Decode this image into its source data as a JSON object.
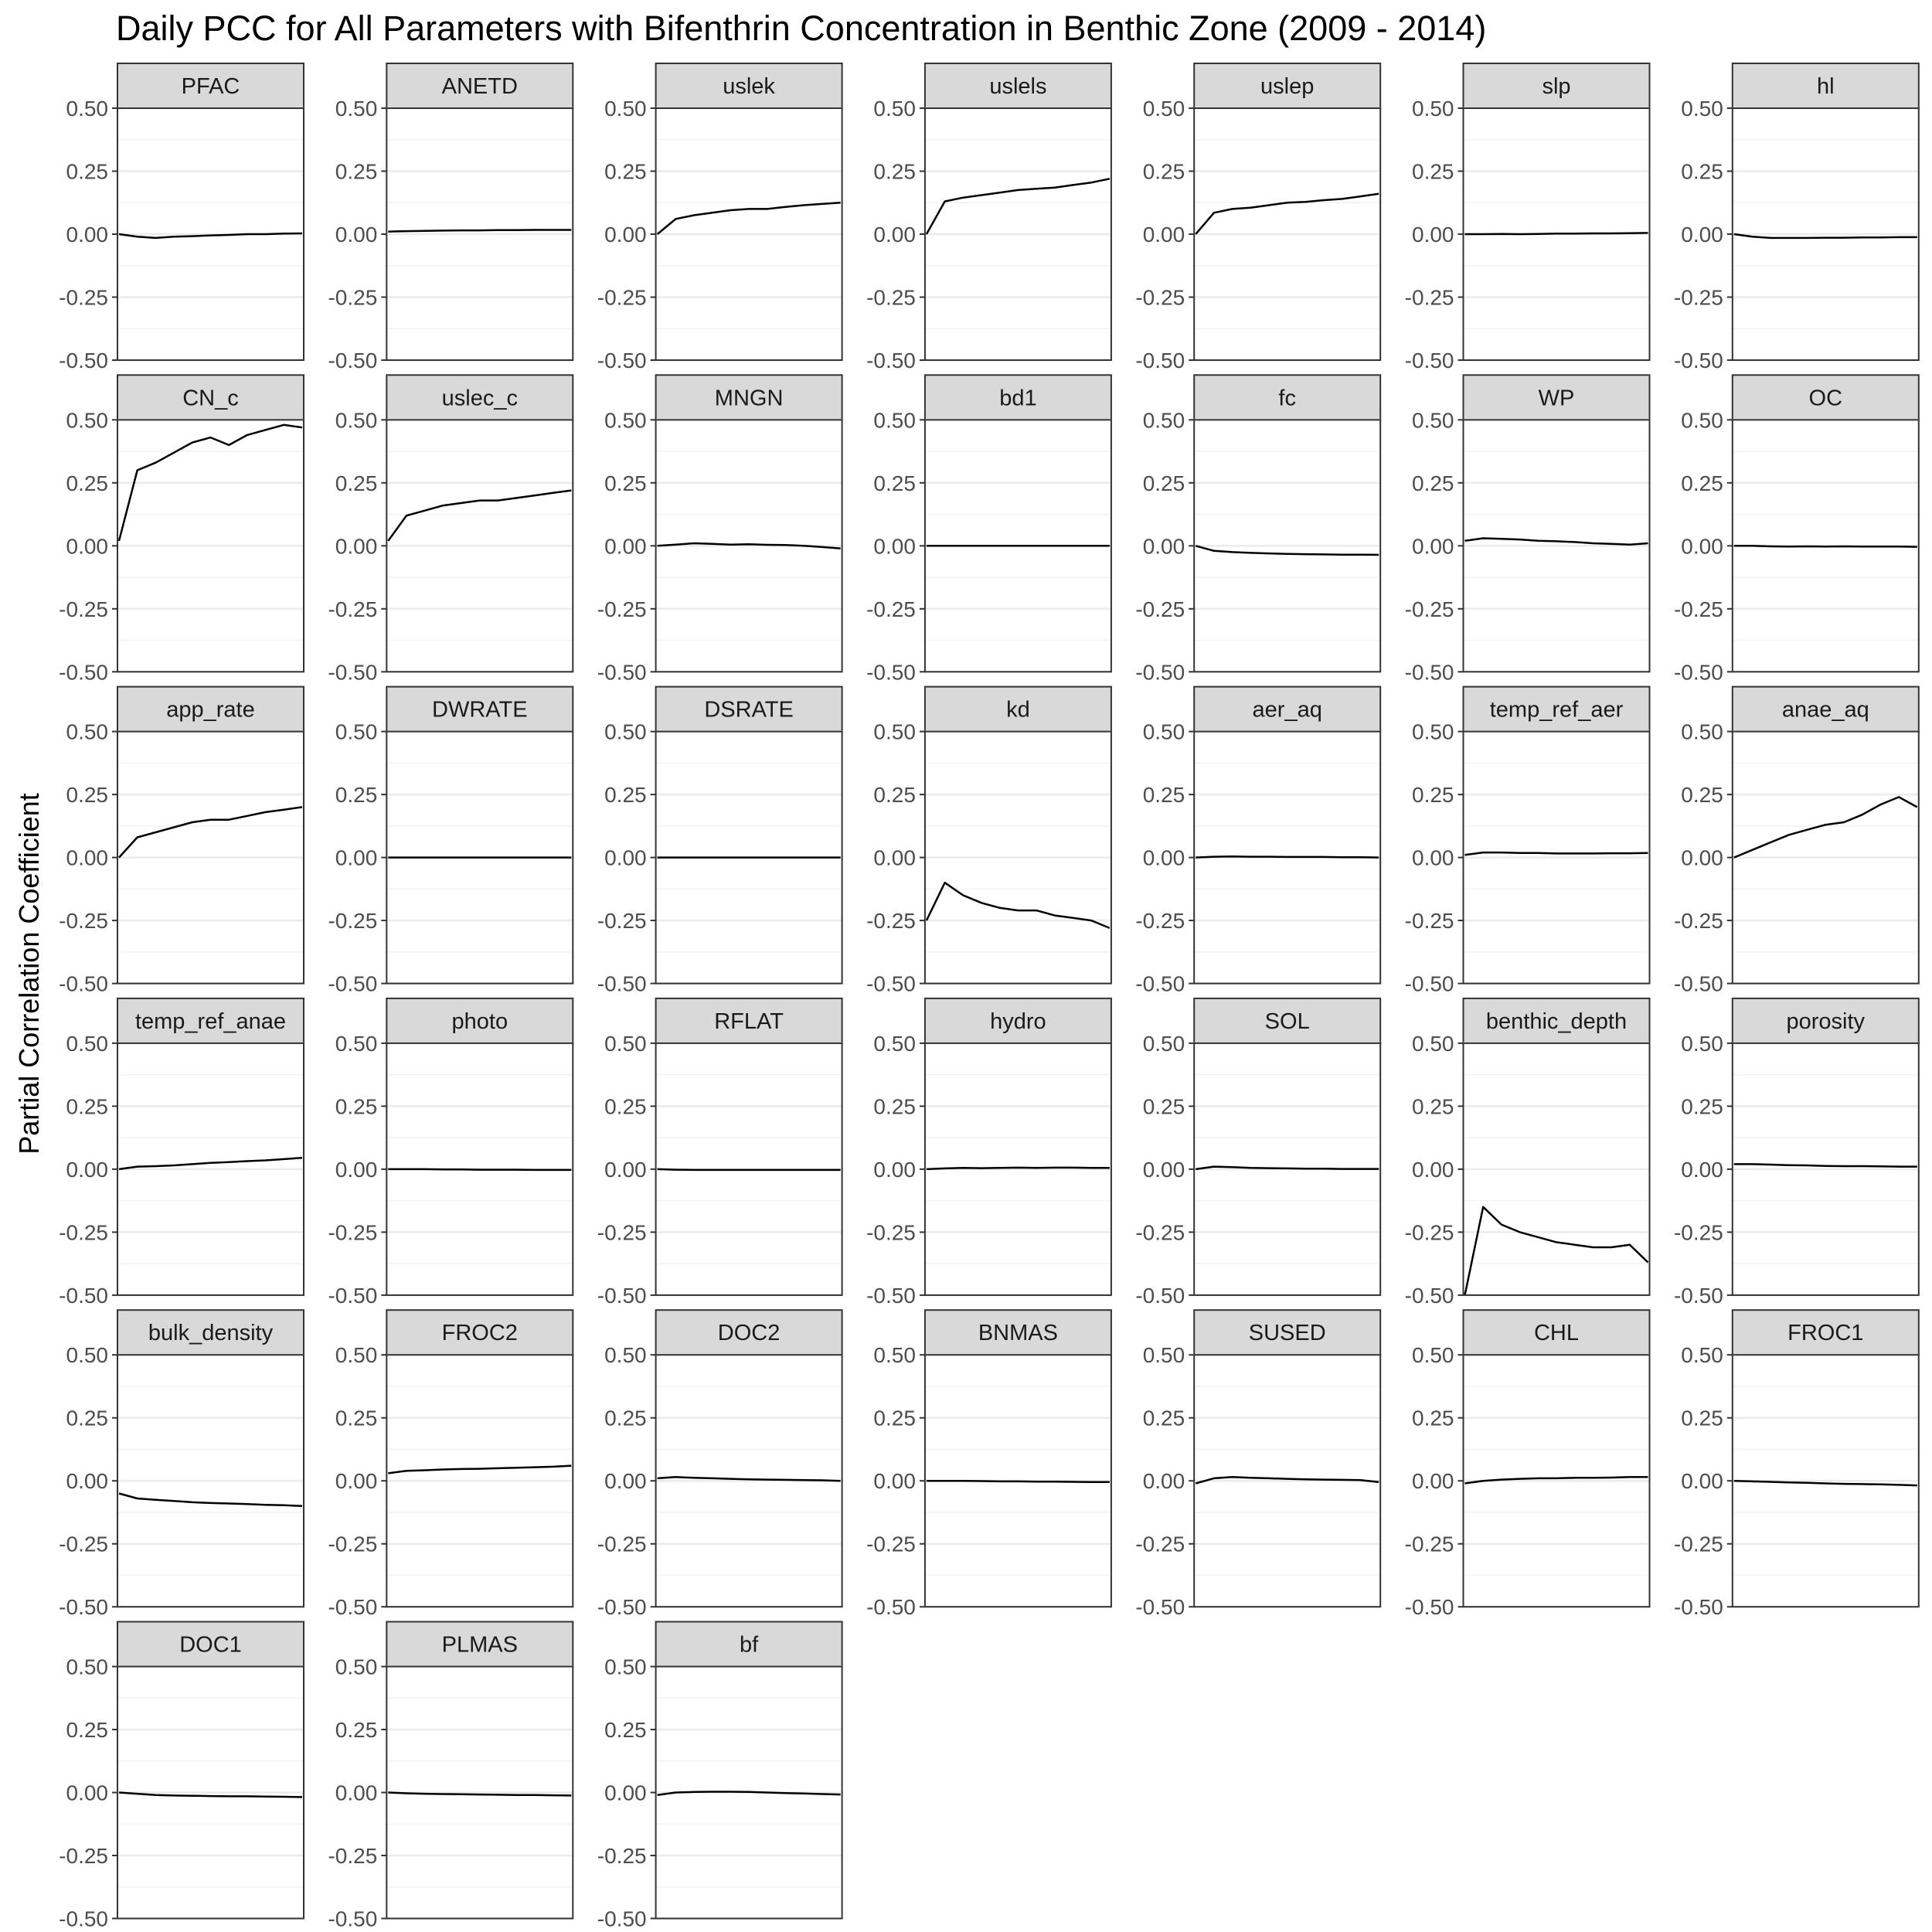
{
  "chart_data": {
    "type": "line",
    "title": "Daily PCC for All Parameters with Bifenthrin Concentration in Benthic Zone (2009 - 2014)",
    "xlabel": "",
    "ylabel": "Partial Correlation Coefficient",
    "ylim": [
      -0.5,
      0.5
    ],
    "y_ticks": [
      "0.50",
      "0.25",
      "0.00",
      "-0.25",
      "-0.50"
    ],
    "x_axis_labels_shown": false,
    "grid": true,
    "layout": "facet grid, 7 columns",
    "series": [
      {
        "name": "PFAC",
        "values": [
          0.0,
          -0.01,
          -0.015,
          -0.01,
          -0.008,
          -0.005,
          -0.003,
          0.0,
          0.0,
          0.002,
          0.003
        ]
      },
      {
        "name": "ANETD",
        "values": [
          0.01,
          0.012,
          0.013,
          0.014,
          0.015,
          0.015,
          0.016,
          0.016,
          0.017,
          0.017,
          0.017
        ]
      },
      {
        "name": "uslek",
        "values": [
          0.0,
          0.06,
          0.075,
          0.085,
          0.095,
          0.1,
          0.1,
          0.108,
          0.115,
          0.12,
          0.125
        ]
      },
      {
        "name": "uslels",
        "values": [
          0.0,
          0.13,
          0.145,
          0.155,
          0.165,
          0.175,
          0.18,
          0.185,
          0.195,
          0.205,
          0.22
        ]
      },
      {
        "name": "uslep",
        "values": [
          0.0,
          0.085,
          0.1,
          0.105,
          0.115,
          0.125,
          0.128,
          0.135,
          0.14,
          0.15,
          0.16
        ]
      },
      {
        "name": "slp",
        "values": [
          0.0,
          0.0,
          0.001,
          0.0,
          0.001,
          0.002,
          0.002,
          0.003,
          0.003,
          0.004,
          0.005
        ]
      },
      {
        "name": "hl",
        "values": [
          0.0,
          -0.01,
          -0.015,
          -0.015,
          -0.015,
          -0.014,
          -0.014,
          -0.013,
          -0.013,
          -0.012,
          -0.012
        ]
      },
      {
        "name": "CN_c",
        "values": [
          0.02,
          0.3,
          0.33,
          0.37,
          0.41,
          0.43,
          0.4,
          0.44,
          0.46,
          0.48,
          0.47
        ]
      },
      {
        "name": "uslec_c",
        "values": [
          0.02,
          0.12,
          0.14,
          0.16,
          0.17,
          0.18,
          0.18,
          0.19,
          0.2,
          0.21,
          0.22
        ]
      },
      {
        "name": "MNGN",
        "values": [
          0.0,
          0.005,
          0.01,
          0.008,
          0.005,
          0.006,
          0.004,
          0.003,
          0.0,
          -0.005,
          -0.01
        ]
      },
      {
        "name": "bd1",
        "values": [
          0.0,
          0.0,
          0.0,
          0.0,
          0.0,
          0.0,
          0.0,
          0.0,
          0.0,
          0.0,
          0.0
        ]
      },
      {
        "name": "fc",
        "values": [
          0.0,
          -0.02,
          -0.025,
          -0.028,
          -0.03,
          -0.032,
          -0.033,
          -0.034,
          -0.035,
          -0.035,
          -0.036
        ]
      },
      {
        "name": "WP",
        "values": [
          0.02,
          0.03,
          0.028,
          0.025,
          0.02,
          0.018,
          0.015,
          0.01,
          0.008,
          0.005,
          0.01
        ]
      },
      {
        "name": "OC",
        "values": [
          0.0,
          0.0,
          -0.002,
          -0.003,
          -0.002,
          -0.003,
          -0.002,
          -0.003,
          -0.003,
          -0.003,
          -0.004
        ]
      },
      {
        "name": "app_rate",
        "values": [
          0.0,
          0.08,
          0.1,
          0.12,
          0.14,
          0.15,
          0.15,
          0.165,
          0.18,
          0.19,
          0.2
        ]
      },
      {
        "name": "DWRATE",
        "values": [
          0.0,
          0.0,
          0.0,
          0.0,
          0.0,
          0.0,
          0.0,
          0.0,
          0.0,
          0.0,
          0.0
        ]
      },
      {
        "name": "DSRATE",
        "values": [
          0.0,
          0.0,
          0.0,
          0.0,
          0.0,
          0.0,
          0.0,
          0.0,
          0.0,
          0.0,
          0.0
        ]
      },
      {
        "name": "kd",
        "values": [
          -0.25,
          -0.1,
          -0.15,
          -0.18,
          -0.2,
          -0.21,
          -0.21,
          -0.23,
          -0.24,
          -0.25,
          -0.28
        ]
      },
      {
        "name": "aer_aq",
        "values": [
          0.0,
          0.003,
          0.004,
          0.003,
          0.003,
          0.002,
          0.002,
          0.002,
          0.001,
          0.001,
          0.0
        ]
      },
      {
        "name": "temp_ref_aer",
        "values": [
          0.01,
          0.02,
          0.02,
          0.018,
          0.018,
          0.016,
          0.016,
          0.016,
          0.017,
          0.017,
          0.018
        ]
      },
      {
        "name": "anae_aq",
        "values": [
          0.0,
          0.03,
          0.06,
          0.09,
          0.11,
          0.13,
          0.14,
          0.17,
          0.21,
          0.24,
          0.2
        ]
      },
      {
        "name": "temp_ref_anae",
        "values": [
          0.0,
          0.01,
          0.012,
          0.015,
          0.02,
          0.025,
          0.028,
          0.032,
          0.035,
          0.04,
          0.045
        ]
      },
      {
        "name": "photo",
        "values": [
          0.0,
          0.0,
          0.0,
          -0.001,
          -0.001,
          -0.002,
          -0.002,
          -0.002,
          -0.003,
          -0.003,
          -0.003
        ]
      },
      {
        "name": "RFLAT",
        "values": [
          0.0,
          -0.002,
          -0.003,
          -0.003,
          -0.003,
          -0.003,
          -0.003,
          -0.003,
          -0.003,
          -0.003,
          -0.003
        ]
      },
      {
        "name": "hydro",
        "values": [
          0.0,
          0.003,
          0.005,
          0.004,
          0.005,
          0.006,
          0.005,
          0.006,
          0.006,
          0.005,
          0.005
        ]
      },
      {
        "name": "SOL",
        "values": [
          0.0,
          0.01,
          0.008,
          0.005,
          0.004,
          0.003,
          0.002,
          0.002,
          0.001,
          0.001,
          0.001
        ]
      },
      {
        "name": "benthic_depth",
        "values": [
          -0.5,
          -0.15,
          -0.22,
          -0.25,
          -0.27,
          -0.29,
          -0.3,
          -0.31,
          -0.31,
          -0.3,
          -0.37
        ]
      },
      {
        "name": "porosity",
        "values": [
          0.02,
          0.02,
          0.018,
          0.016,
          0.015,
          0.013,
          0.012,
          0.012,
          0.011,
          0.01,
          0.01
        ]
      },
      {
        "name": "bulk_density",
        "values": [
          -0.05,
          -0.07,
          -0.075,
          -0.08,
          -0.085,
          -0.088,
          -0.09,
          -0.092,
          -0.095,
          -0.097,
          -0.1
        ]
      },
      {
        "name": "FROC2",
        "values": [
          0.03,
          0.04,
          0.042,
          0.045,
          0.047,
          0.048,
          0.05,
          0.052,
          0.054,
          0.056,
          0.06
        ]
      },
      {
        "name": "DOC2",
        "values": [
          0.01,
          0.015,
          0.012,
          0.01,
          0.008,
          0.006,
          0.005,
          0.004,
          0.003,
          0.002,
          0.0
        ]
      },
      {
        "name": "BNMAS",
        "values": [
          0.0,
          0.0,
          0.0,
          -0.001,
          -0.002,
          -0.002,
          -0.003,
          -0.003,
          -0.004,
          -0.005,
          -0.005
        ]
      },
      {
        "name": "SUSED",
        "values": [
          -0.01,
          0.01,
          0.015,
          0.012,
          0.01,
          0.008,
          0.006,
          0.005,
          0.004,
          0.003,
          -0.005
        ]
      },
      {
        "name": "CHL",
        "values": [
          -0.01,
          0.0,
          0.005,
          0.008,
          0.01,
          0.01,
          0.012,
          0.012,
          0.013,
          0.015,
          0.015
        ]
      },
      {
        "name": "FROC1",
        "values": [
          0.0,
          -0.002,
          -0.004,
          -0.006,
          -0.008,
          -0.01,
          -0.012,
          -0.013,
          -0.014,
          -0.016,
          -0.018
        ]
      },
      {
        "name": "DOC1",
        "values": [
          0.0,
          -0.005,
          -0.01,
          -0.012,
          -0.013,
          -0.014,
          -0.015,
          -0.015,
          -0.016,
          -0.017,
          -0.018
        ]
      },
      {
        "name": "PLMAS",
        "values": [
          0.0,
          -0.003,
          -0.005,
          -0.006,
          -0.007,
          -0.008,
          -0.009,
          -0.01,
          -0.01,
          -0.011,
          -0.012
        ]
      },
      {
        "name": "bf",
        "values": [
          -0.01,
          0.0,
          0.002,
          0.003,
          0.003,
          0.002,
          0.0,
          -0.002,
          -0.004,
          -0.006,
          -0.008
        ]
      }
    ]
  }
}
